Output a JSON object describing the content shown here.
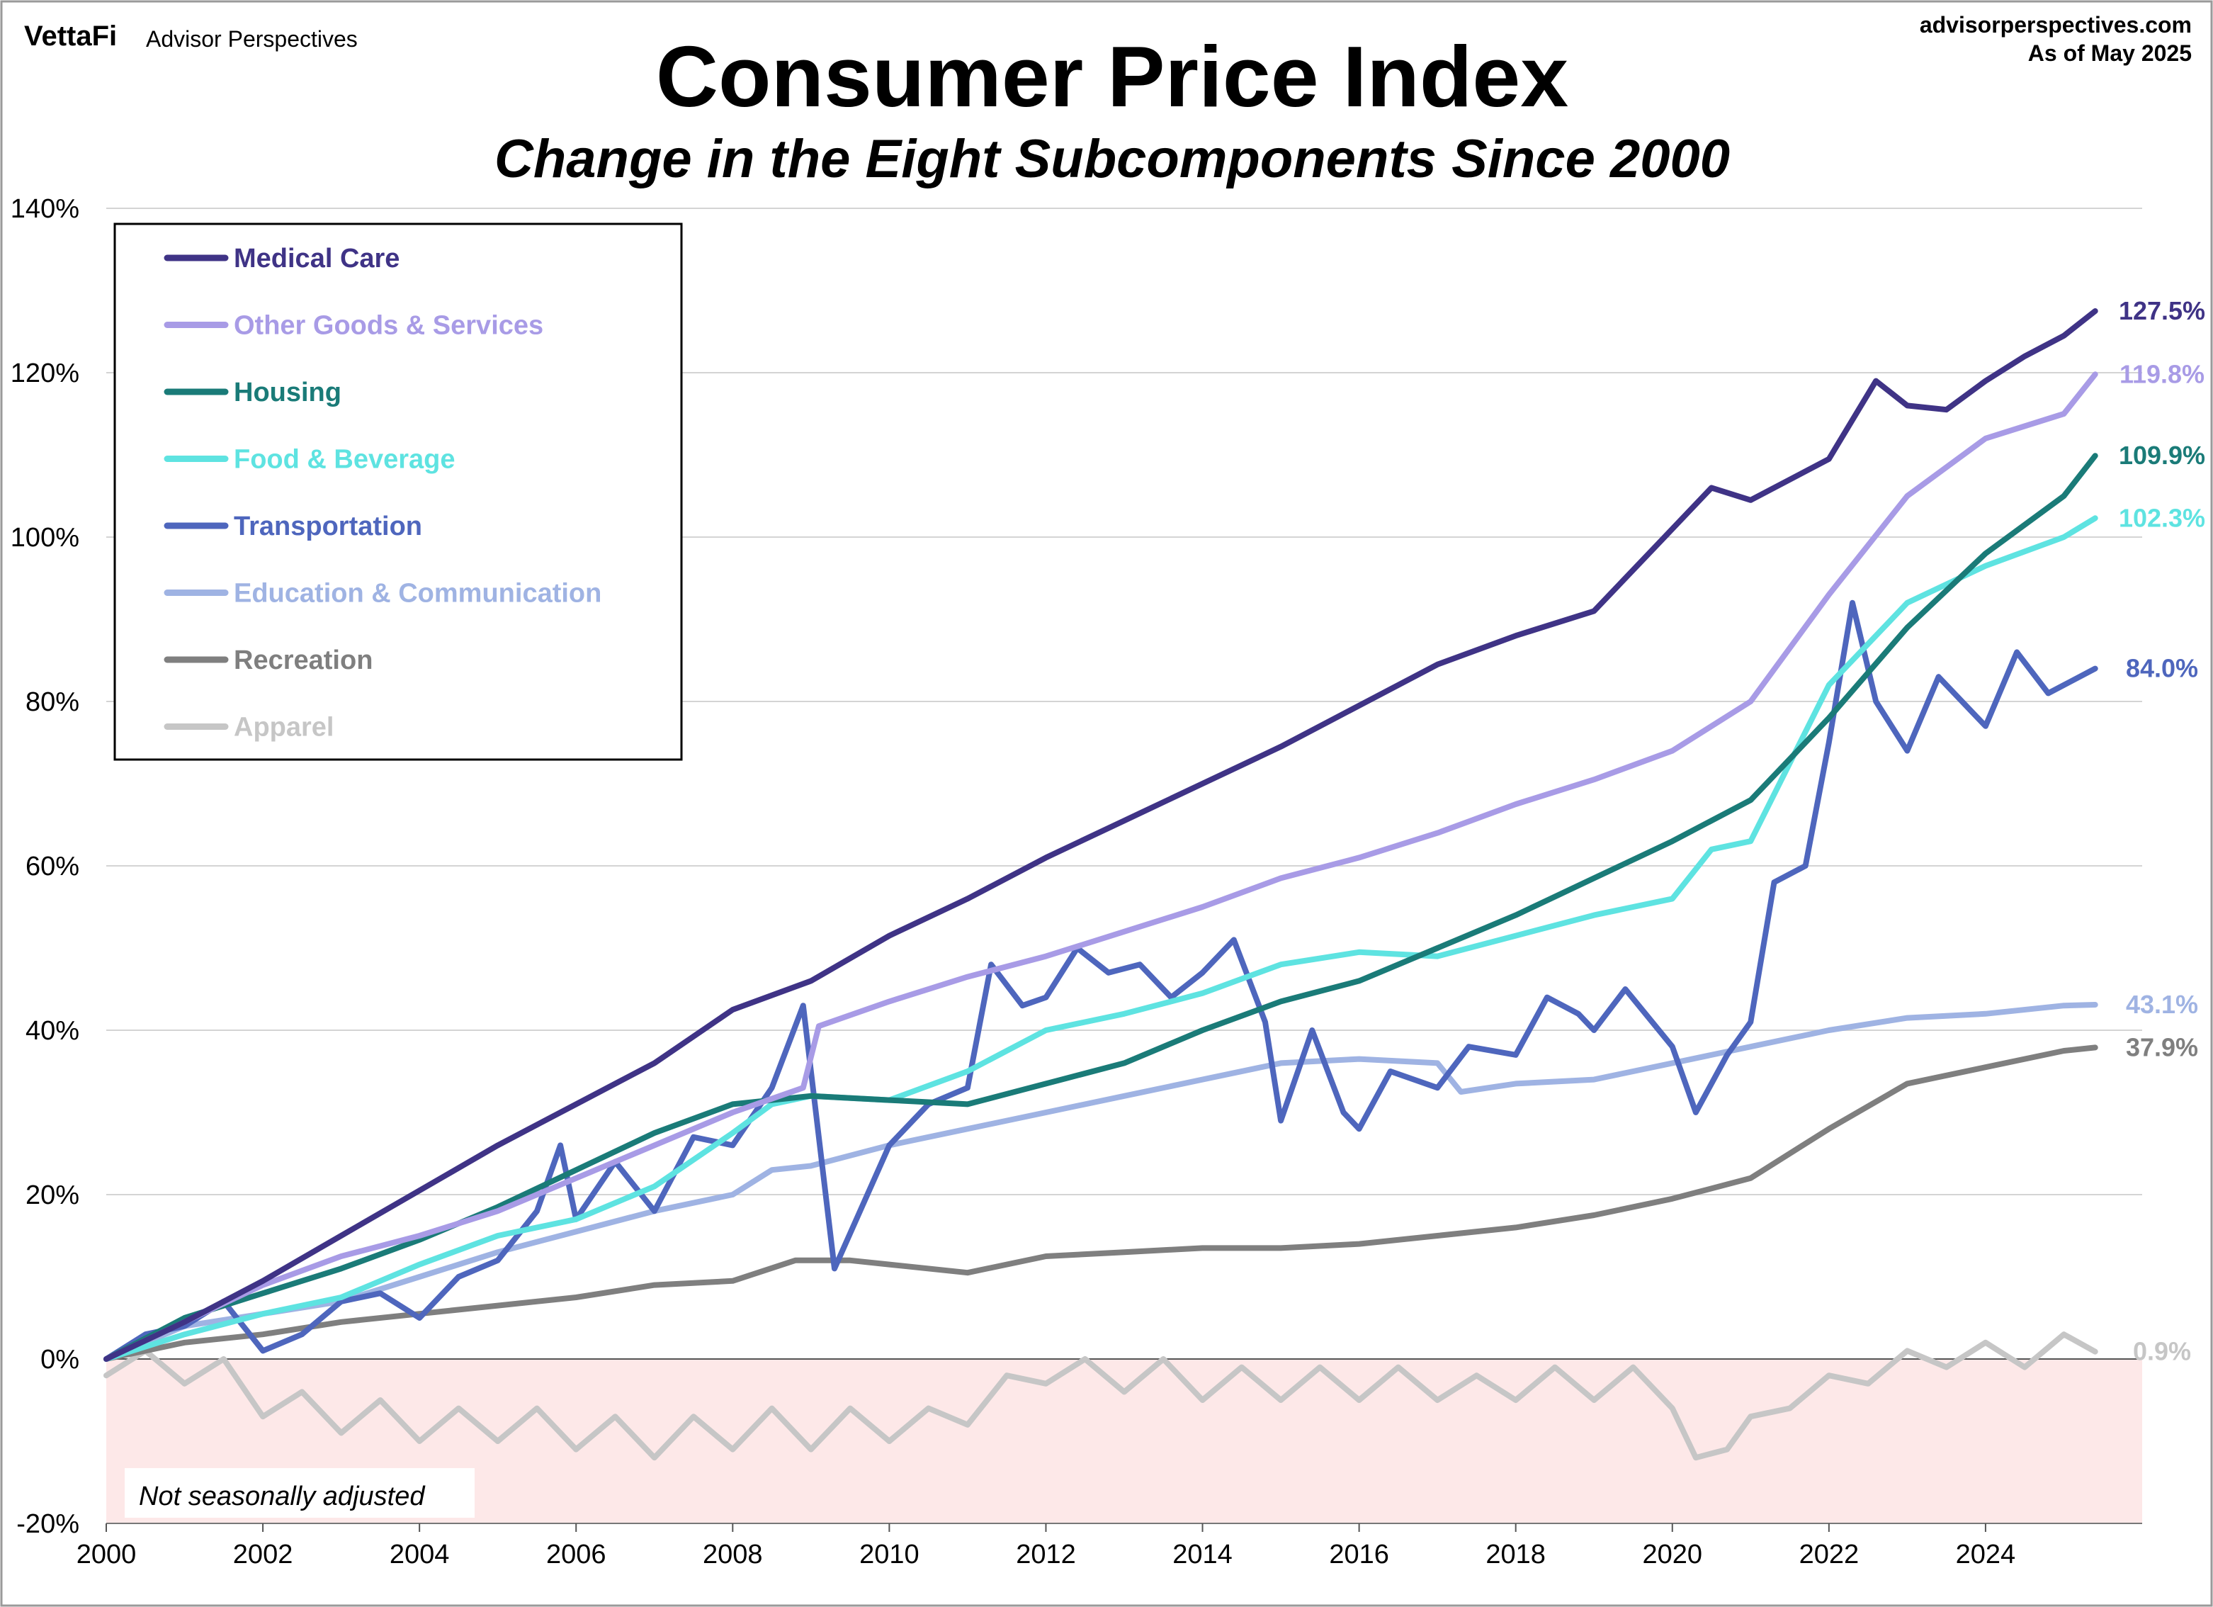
{
  "header": {
    "brand_logo": "VettaFi",
    "brand_name": "Advisor Perspectives",
    "site": "advisorperspectives.com",
    "asof": "As of May 2025"
  },
  "note": "Not seasonally adjusted",
  "chart_data": {
    "type": "line",
    "title": "Consumer Price Index",
    "subtitle": "Change in the Eight Subcomponents Since 2000",
    "xlabel": "",
    "ylabel": "",
    "xlim": [
      2000,
      2026
    ],
    "ylim": [
      -20,
      140
    ],
    "x_ticks": [
      2000,
      2002,
      2004,
      2006,
      2008,
      2010,
      2012,
      2014,
      2016,
      2018,
      2020,
      2022,
      2024
    ],
    "y_ticks": [
      -20,
      0,
      20,
      40,
      60,
      80,
      100,
      120,
      140
    ],
    "y_tick_format": "percent",
    "grid": "horizontal",
    "legend_position": "top-left",
    "shaded_region": {
      "y_from": -20,
      "y_to": 0,
      "color": "#fde8e8"
    },
    "colors": {
      "medical": "#3f3386",
      "other": "#a89be6",
      "housing": "#1a7b78",
      "food": "#5ee3e1",
      "transport": "#4e66bd",
      "education": "#9fb3e3",
      "recreation": "#7f7f7f",
      "apparel": "#c6c6c6"
    },
    "series": [
      {
        "name": "Medical Care",
        "key": "medical",
        "end_label": "127.5%",
        "x": [
          2000,
          2001,
          2002,
          2003,
          2004,
          2005,
          2006,
          2007,
          2008,
          2009,
          2010,
          2011,
          2012,
          2013,
          2014,
          2015,
          2016,
          2017,
          2018,
          2019,
          2020,
          2020.5,
          2021,
          2022,
          2022.6,
          2023,
          2023.5,
          2024,
          2024.5,
          2025,
          2025.4
        ],
        "y": [
          0,
          4.5,
          9.5,
          15,
          20.5,
          26,
          31,
          36,
          42.5,
          46,
          51.5,
          56,
          61,
          65.5,
          70,
          74.5,
          79.5,
          84.5,
          88,
          91,
          101,
          106,
          104.5,
          109.5,
          119,
          116,
          115.5,
          119,
          122,
          124.5,
          127.5
        ]
      },
      {
        "name": "Other Goods & Services",
        "key": "other",
        "end_label": "119.8%",
        "x": [
          2000,
          2001,
          2002,
          2003,
          2004,
          2005,
          2006,
          2007,
          2008,
          2008.9,
          2009.1,
          2010,
          2011,
          2012,
          2013,
          2014,
          2015,
          2016,
          2017,
          2018,
          2019,
          2020,
          2021,
          2022,
          2023,
          2024,
          2025,
          2025.4
        ],
        "y": [
          0,
          4.5,
          9,
          12.5,
          15,
          18,
          22,
          26,
          30,
          33,
          40.5,
          43.5,
          46.5,
          49,
          52,
          55,
          58.5,
          61,
          64,
          67.5,
          70.5,
          74,
          80,
          93,
          105,
          112,
          115,
          119.8
        ]
      },
      {
        "name": "Housing",
        "key": "housing",
        "end_label": "109.9%",
        "x": [
          2000,
          2001,
          2002,
          2003,
          2004,
          2005,
          2006,
          2007,
          2008,
          2009,
          2010,
          2011,
          2012,
          2013,
          2014,
          2015,
          2016,
          2017,
          2018,
          2019,
          2020,
          2021,
          2022,
          2023,
          2024,
          2025,
          2025.4
        ],
        "y": [
          0,
          5,
          8,
          11,
          14.5,
          18.5,
          23,
          27.5,
          31,
          32,
          31.5,
          31,
          33.5,
          36,
          40,
          43.5,
          46,
          50,
          54,
          58.5,
          63,
          68,
          78,
          89,
          98,
          105,
          109.9
        ]
      },
      {
        "name": "Food & Beverage",
        "key": "food",
        "end_label": "102.3%",
        "x": [
          2000,
          2001,
          2002,
          2003,
          2004,
          2005,
          2006,
          2007,
          2008,
          2008.5,
          2009,
          2010,
          2011,
          2012,
          2013,
          2014,
          2015,
          2016,
          2017,
          2018,
          2019,
          2020,
          2020.5,
          2021,
          2022,
          2023,
          2024,
          2025,
          2025.4
        ],
        "y": [
          0,
          3,
          5.5,
          7.5,
          11.5,
          15,
          17,
          21,
          27.5,
          31,
          32,
          31.5,
          35,
          40,
          42,
          44.5,
          48,
          49.5,
          49,
          51.5,
          54,
          56,
          62,
          63,
          82,
          92,
          96.5,
          100,
          102.3
        ]
      },
      {
        "name": "Transportation",
        "key": "transport",
        "end_label": "84.0%",
        "x": [
          2000,
          2000.5,
          2001,
          2001.5,
          2002,
          2002.5,
          2003,
          2003.5,
          2004,
          2004.5,
          2005,
          2005.5,
          2005.8,
          2006,
          2006.5,
          2007,
          2007.5,
          2008,
          2008.5,
          2008.9,
          2009.3,
          2010,
          2010.5,
          2011,
          2011.3,
          2011.7,
          2012,
          2012.4,
          2012.8,
          2013.2,
          2013.6,
          2014,
          2014.4,
          2014.8,
          2015,
          2015.4,
          2015.8,
          2016,
          2016.4,
          2017,
          2017.4,
          2018,
          2018.4,
          2018.8,
          2019,
          2019.4,
          2020,
          2020.3,
          2020.7,
          2021,
          2021.3,
          2021.7,
          2022,
          2022.3,
          2022.6,
          2023,
          2023.4,
          2023.8,
          2024,
          2024.4,
          2024.8,
          2025,
          2025.4
        ],
        "y": [
          0,
          3,
          4,
          7,
          1,
          3,
          7,
          8,
          5,
          10,
          12,
          18,
          26,
          17,
          24,
          18,
          27,
          26,
          33,
          43,
          11,
          26,
          31,
          33,
          48,
          43,
          44,
          50,
          47,
          48,
          44,
          47,
          51,
          41,
          29,
          40,
          30,
          28,
          35,
          33,
          38,
          37,
          44,
          42,
          40,
          45,
          38,
          30,
          37,
          41,
          58,
          60,
          75,
          92,
          80,
          74,
          83,
          79,
          77,
          86,
          81,
          82,
          84
        ]
      },
      {
        "name": "Education & Communication",
        "key": "education",
        "end_label": "43.1%",
        "x": [
          2000,
          2001,
          2002,
          2003,
          2004,
          2005,
          2006,
          2007,
          2008,
          2008.5,
          2009,
          2010,
          2011,
          2012,
          2013,
          2014,
          2015,
          2016,
          2017,
          2017.3,
          2018,
          2019,
          2020,
          2021,
          2022,
          2023,
          2024,
          2025,
          2025.4
        ],
        "y": [
          0,
          4,
          5.5,
          7,
          10,
          13,
          15.5,
          18,
          20,
          23,
          23.5,
          26,
          28,
          30,
          32,
          34,
          36,
          36.5,
          36,
          32.5,
          33.5,
          34,
          36,
          38,
          40,
          41.5,
          42,
          43,
          43.1
        ]
      },
      {
        "name": "Recreation",
        "key": "recreation",
        "end_label": "37.9%",
        "x": [
          2000,
          2001,
          2002,
          2003,
          2004,
          2005,
          2006,
          2007,
          2008,
          2008.8,
          2009.5,
          2010,
          2011,
          2012,
          2013,
          2014,
          2015,
          2016,
          2017,
          2018,
          2019,
          2020,
          2021,
          2022,
          2023,
          2024,
          2025,
          2025.4
        ],
        "y": [
          0,
          2,
          3,
          4.5,
          5.5,
          6.5,
          7.5,
          9,
          9.5,
          12,
          12,
          11.5,
          10.5,
          12.5,
          13,
          13.5,
          13.5,
          14,
          15,
          16,
          17.5,
          19.5,
          22,
          28,
          33.5,
          35.5,
          37.5,
          37.9
        ]
      },
      {
        "name": "Apparel",
        "key": "apparel",
        "end_label": "0.9%",
        "x": [
          2000,
          2000.5,
          2001,
          2001.5,
          2002,
          2002.5,
          2003,
          2003.5,
          2004,
          2004.5,
          2005,
          2005.5,
          2006,
          2006.5,
          2007,
          2007.5,
          2008,
          2008.5,
          2009,
          2009.5,
          2010,
          2010.5,
          2011,
          2011.5,
          2012,
          2012.5,
          2013,
          2013.5,
          2014,
          2014.5,
          2015,
          2015.5,
          2016,
          2016.5,
          2017,
          2017.5,
          2018,
          2018.5,
          2019,
          2019.5,
          2020,
          2020.3,
          2020.7,
          2021,
          2021.5,
          2022,
          2022.5,
          2023,
          2023.5,
          2024,
          2024.5,
          2025,
          2025.4
        ],
        "y": [
          -2,
          1,
          -3,
          0,
          -7,
          -4,
          -9,
          -5,
          -10,
          -6,
          -10,
          -6,
          -11,
          -7,
          -12,
          -7,
          -11,
          -6,
          -11,
          -6,
          -10,
          -6,
          -8,
          -2,
          -3,
          0,
          -4,
          0,
          -5,
          -1,
          -5,
          -1,
          -5,
          -1,
          -5,
          -2,
          -5,
          -1,
          -5,
          -1,
          -6,
          -12,
          -11,
          -7,
          -6,
          -2,
          -3,
          1,
          -1,
          2,
          -1,
          3,
          0.9
        ]
      }
    ]
  }
}
